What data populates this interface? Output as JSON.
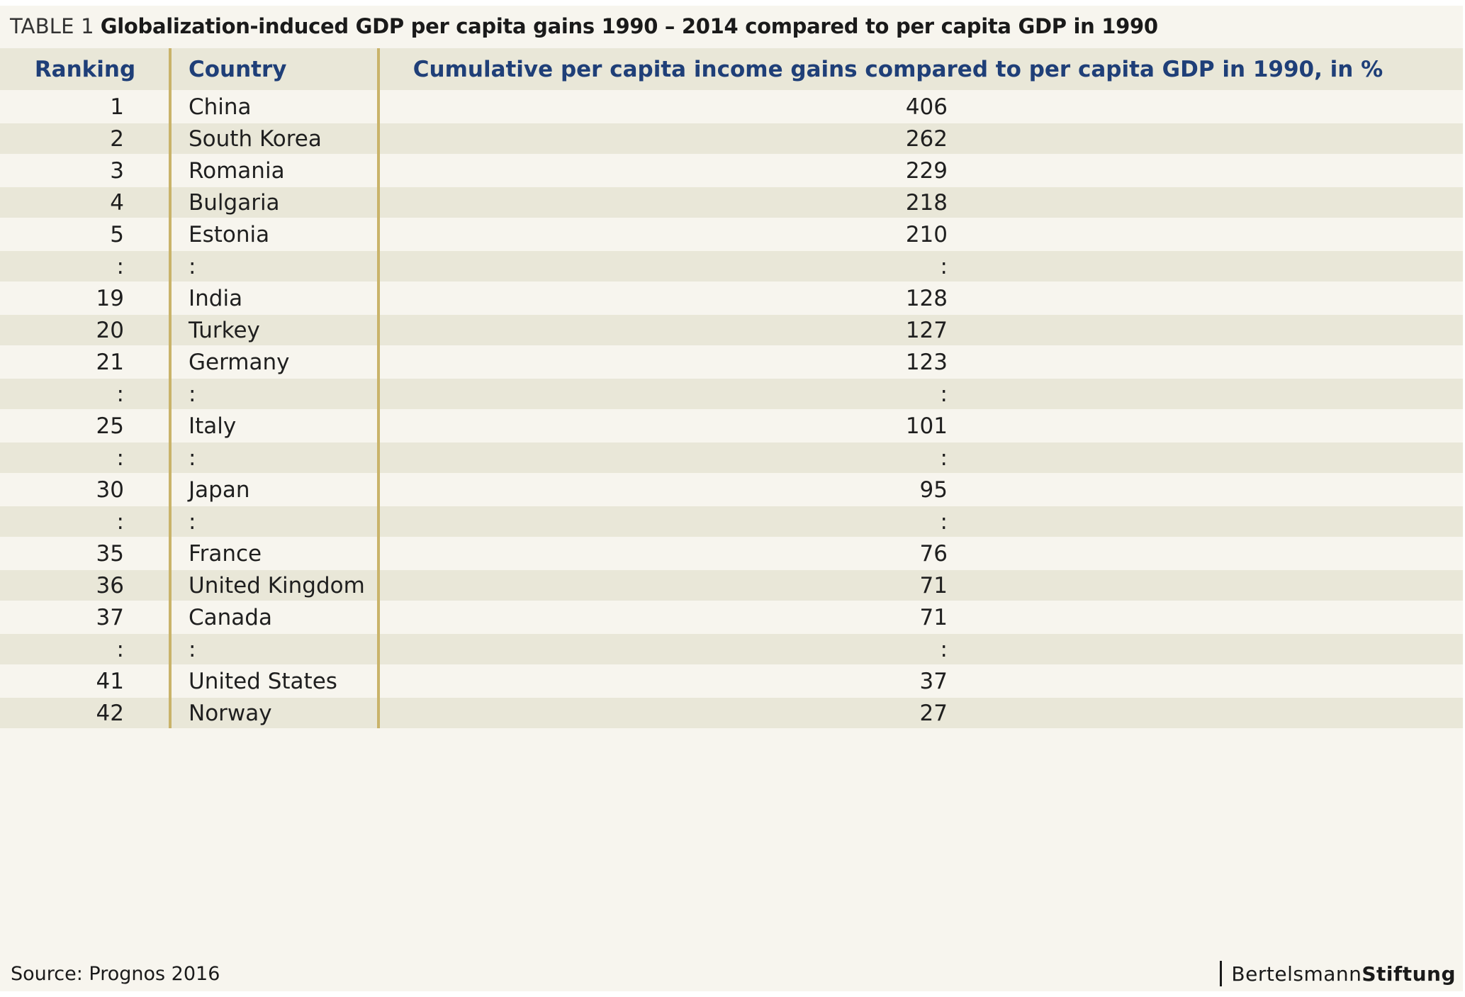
{
  "title": {
    "prefix": "TABLE 1",
    "text": "Globalization-induced GDP per capita gains 1990 – 2014 compared to per capita GDP in 1990"
  },
  "chart_data": {
    "type": "table",
    "columns": [
      "Ranking",
      "Country",
      "Cumulative per capita income gains compared to per capita GDP in 1990, in %"
    ],
    "rows": [
      {
        "rank": "1",
        "country": "China",
        "value": "406"
      },
      {
        "rank": "2",
        "country": "South Korea",
        "value": "262"
      },
      {
        "rank": "3",
        "country": "Romania",
        "value": "229"
      },
      {
        "rank": "4",
        "country": "Bulgaria",
        "value": "218"
      },
      {
        "rank": "5",
        "country": "Estonia",
        "value": "210"
      },
      {
        "rank": ":",
        "country": ":",
        "value": ":"
      },
      {
        "rank": "19",
        "country": "India",
        "value": "128"
      },
      {
        "rank": "20",
        "country": "Turkey",
        "value": "127"
      },
      {
        "rank": "21",
        "country": "Germany",
        "value": "123"
      },
      {
        "rank": ":",
        "country": ":",
        "value": ":"
      },
      {
        "rank": "25",
        "country": "Italy",
        "value": "101"
      },
      {
        "rank": ":",
        "country": ":",
        "value": ":"
      },
      {
        "rank": "30",
        "country": "Japan",
        "value": "95"
      },
      {
        "rank": ":",
        "country": ":",
        "value": ":"
      },
      {
        "rank": "35",
        "country": "France",
        "value": "76"
      },
      {
        "rank": "36",
        "country": "United Kingdom",
        "value": "71"
      },
      {
        "rank": "37",
        "country": "Canada",
        "value": "71"
      },
      {
        "rank": ":",
        "country": ":",
        "value": ":"
      },
      {
        "rank": "41",
        "country": "United States",
        "value": "37"
      },
      {
        "rank": "42",
        "country": "Norway",
        "value": "27"
      }
    ]
  },
  "footer": {
    "source": "Source: Prognos 2016",
    "logo_part1": "Bertelsmann",
    "logo_part2": "Stiftung"
  },
  "colors": {
    "header_text": "#1f3f78",
    "row_light": "#f7f5ee",
    "row_dark": "#e9e7d8",
    "divider": "#c9b36a"
  }
}
